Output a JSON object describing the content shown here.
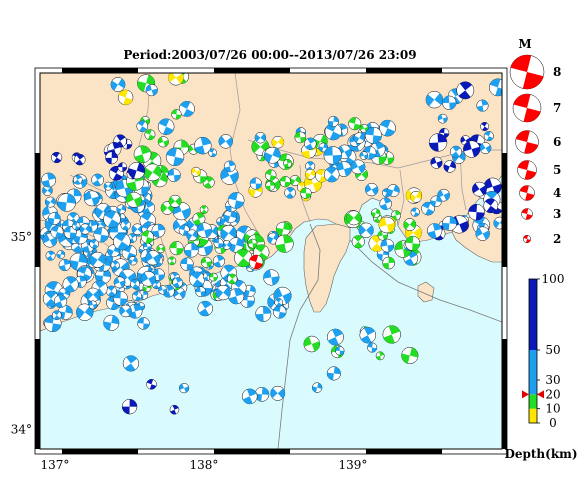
{
  "title": "Period:2003/07/26 00:00--2013/07/26 23:09",
  "map": {
    "lon_range": [
      136.9,
      140.0
    ],
    "lat_range": [
      33.9,
      35.85
    ],
    "lon_ticks": [
      {
        "value": 137,
        "label": "137°"
      },
      {
        "value": 138,
        "label": "138°"
      },
      {
        "value": 139,
        "label": "139°"
      }
    ],
    "lat_ticks": [
      {
        "value": 35,
        "label": "35°"
      },
      {
        "value": 34,
        "label": "34°"
      }
    ],
    "colors": {
      "land": "#fbe3c6",
      "sea": "#d9fbfd",
      "border": "#9a9a9a",
      "frame": "#000000"
    }
  },
  "magnitude_legend": {
    "title": "M",
    "entries": [
      {
        "m": 8,
        "label": "8"
      },
      {
        "m": 7,
        "label": "7"
      },
      {
        "m": 6,
        "label": "6"
      },
      {
        "m": 5,
        "label": "5"
      },
      {
        "m": 4,
        "label": "4"
      },
      {
        "m": 3,
        "label": "3"
      },
      {
        "m": 2,
        "label": "2"
      }
    ],
    "color": "#ff0000"
  },
  "depth_scale": {
    "title": "Depth(km)",
    "ticks": [
      {
        "value": 100,
        "label": "100"
      },
      {
        "value": 50,
        "label": "50"
      },
      {
        "value": 30,
        "label": "30"
      },
      {
        "value": 20,
        "label": "20"
      },
      {
        "value": 10,
        "label": "10"
      },
      {
        "value": 0,
        "label": "0"
      }
    ],
    "bands": [
      {
        "from": 0,
        "to": 10,
        "color": "#ffe600"
      },
      {
        "from": 10,
        "to": 20,
        "color": "#22dd22"
      },
      {
        "from": 20,
        "to": 50,
        "color": "#1ea0f0"
      },
      {
        "from": 50,
        "to": 100,
        "color": "#0a1ab8"
      }
    ],
    "marker_depth": 20
  },
  "main_event": {
    "lon": 138.35,
    "lat": 34.87,
    "depth": 20,
    "m": 3.5
  },
  "seed": 7
}
